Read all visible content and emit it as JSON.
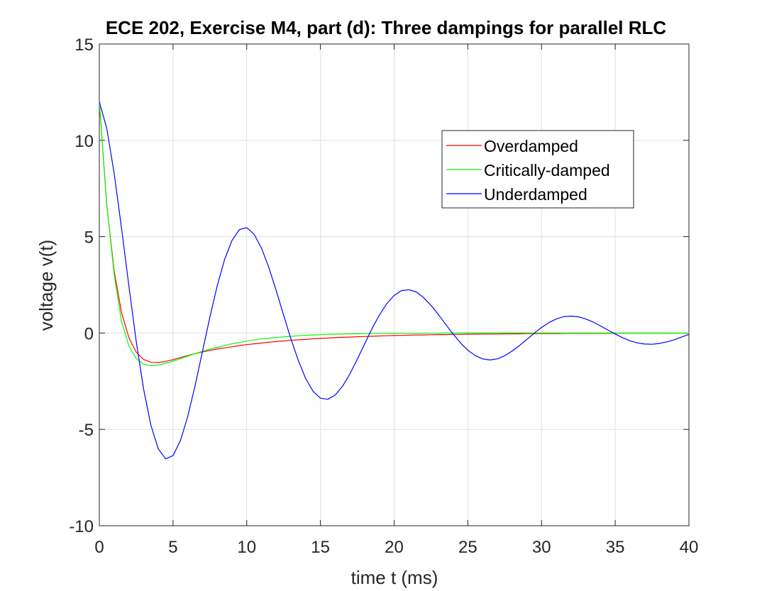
{
  "chart_data": {
    "type": "line",
    "title": "ECE 202, Exercise M4, part (d): Three dampings for parallel RLC",
    "xlabel": "time t (ms)",
    "ylabel": "voltage v(t)",
    "xlim": [
      0,
      40
    ],
    "ylim": [
      -10,
      15
    ],
    "xticks": [
      "0",
      "5",
      "10",
      "15",
      "20",
      "25",
      "30",
      "35",
      "40"
    ],
    "yticks": [
      "-10",
      "-5",
      "0",
      "5",
      "10",
      "15"
    ],
    "grid": true,
    "legend_position": "top-right",
    "x": [
      0,
      0.5,
      1,
      1.5,
      2,
      2.5,
      3,
      3.5,
      4,
      4.5,
      5,
      5.5,
      6,
      6.5,
      7,
      7.5,
      8,
      8.5,
      9,
      9.5,
      10,
      10.5,
      11,
      11.5,
      12,
      12.5,
      13,
      13.5,
      14,
      14.5,
      15,
      15.5,
      16,
      16.5,
      17,
      17.5,
      18,
      18.5,
      19,
      19.5,
      20,
      20.5,
      21,
      21.5,
      22,
      22.5,
      23,
      23.5,
      24,
      24.5,
      25,
      25.5,
      26,
      26.5,
      27,
      27.5,
      28,
      28.5,
      29,
      29.5,
      30,
      30.5,
      31,
      31.5,
      32,
      32.5,
      33,
      33.5,
      34,
      34.5,
      35,
      35.5,
      36,
      36.5,
      37,
      37.5,
      38,
      38.5,
      39,
      39.5,
      40
    ],
    "series": [
      {
        "name": "Overdamped",
        "color": "#ff0000",
        "values": [
          12,
          6.67,
          3.24,
          1.08,
          -0.24,
          -0.99,
          -1.37,
          -1.52,
          -1.53,
          -1.47,
          -1.38,
          -1.27,
          -1.17,
          -1.07,
          -0.98,
          -0.9,
          -0.83,
          -0.77,
          -0.71,
          -0.65,
          -0.6,
          -0.56,
          -0.52,
          -0.48,
          -0.44,
          -0.41,
          -0.38,
          -0.35,
          -0.33,
          -0.3,
          -0.28,
          -0.26,
          -0.24,
          -0.22,
          -0.21,
          -0.19,
          -0.18,
          -0.17,
          -0.15,
          -0.14,
          -0.13,
          -0.12,
          -0.11,
          -0.1,
          -0.1,
          -0.09,
          -0.08,
          -0.08,
          -0.07,
          -0.07,
          -0.06,
          -0.06,
          -0.05,
          -0.05,
          -0.05,
          -0.04,
          -0.04,
          -0.04,
          -0.03,
          -0.03,
          -0.03,
          -0.03,
          -0.03,
          -0.02,
          -0.02,
          -0.02,
          -0.02,
          -0.02,
          -0.02,
          -0.02,
          -0.01,
          -0.01,
          -0.01,
          -0.01,
          -0.01,
          -0.01,
          -0.01,
          -0.01,
          -0.01,
          -0.01,
          -0.01
        ]
      },
      {
        "name": "Critically-damped",
        "color": "#00ff00",
        "values": [
          12,
          6.7,
          3.06,
          0.62,
          -0.66,
          -1.32,
          -1.61,
          -1.7,
          -1.66,
          -1.57,
          -1.46,
          -1.33,
          -1.2,
          -1.07,
          -0.95,
          -0.84,
          -0.74,
          -0.65,
          -0.56,
          -0.49,
          -0.42,
          -0.36,
          -0.31,
          -0.27,
          -0.23,
          -0.2,
          -0.17,
          -0.14,
          -0.12,
          -0.1,
          -0.09,
          -0.07,
          -0.06,
          -0.05,
          -0.04,
          -0.04,
          -0.03,
          -0.03,
          -0.02,
          -0.02,
          -0.02,
          -0.01,
          -0.01,
          -0.01,
          -0.01,
          -0.01,
          -0.01,
          0,
          0,
          0,
          0,
          0,
          0,
          0,
          0,
          0,
          0,
          0,
          0,
          0,
          0,
          0,
          0,
          0,
          0,
          0,
          0,
          0,
          0,
          0,
          0,
          0,
          0,
          0,
          0,
          0,
          0,
          0,
          0,
          0,
          0
        ]
      },
      {
        "name": "Underdamped",
        "color": "#0000ff",
        "values": [
          12,
          10.63,
          8.31,
          5.47,
          2.46,
          -0.41,
          -2.89,
          -4.79,
          -6.01,
          -6.53,
          -6.36,
          -5.59,
          -4.33,
          -2.73,
          -0.95,
          0.82,
          2.46,
          3.82,
          4.81,
          5.37,
          5.47,
          5.13,
          4.41,
          3.4,
          2.2,
          0.93,
          -0.31,
          -1.43,
          -2.36,
          -3.02,
          -3.38,
          -3.44,
          -3.22,
          -2.76,
          -2.12,
          -1.36,
          -0.56,
          0.23,
          0.93,
          1.52,
          1.95,
          2.2,
          2.25,
          2.13,
          1.84,
          1.44,
          0.96,
          0.45,
          -0.05,
          -0.51,
          -0.89,
          -1.17,
          -1.34,
          -1.4,
          -1.34,
          -1.18,
          -0.94,
          -0.65,
          -0.33,
          -0.01,
          0.29,
          0.54,
          0.73,
          0.85,
          0.88,
          0.84,
          0.73,
          0.57,
          0.37,
          0.16,
          -0.05,
          -0.24,
          -0.4,
          -0.51,
          -0.57,
          -0.58,
          -0.54,
          -0.46,
          -0.35,
          -0.21,
          -0.07
        ]
      }
    ]
  }
}
